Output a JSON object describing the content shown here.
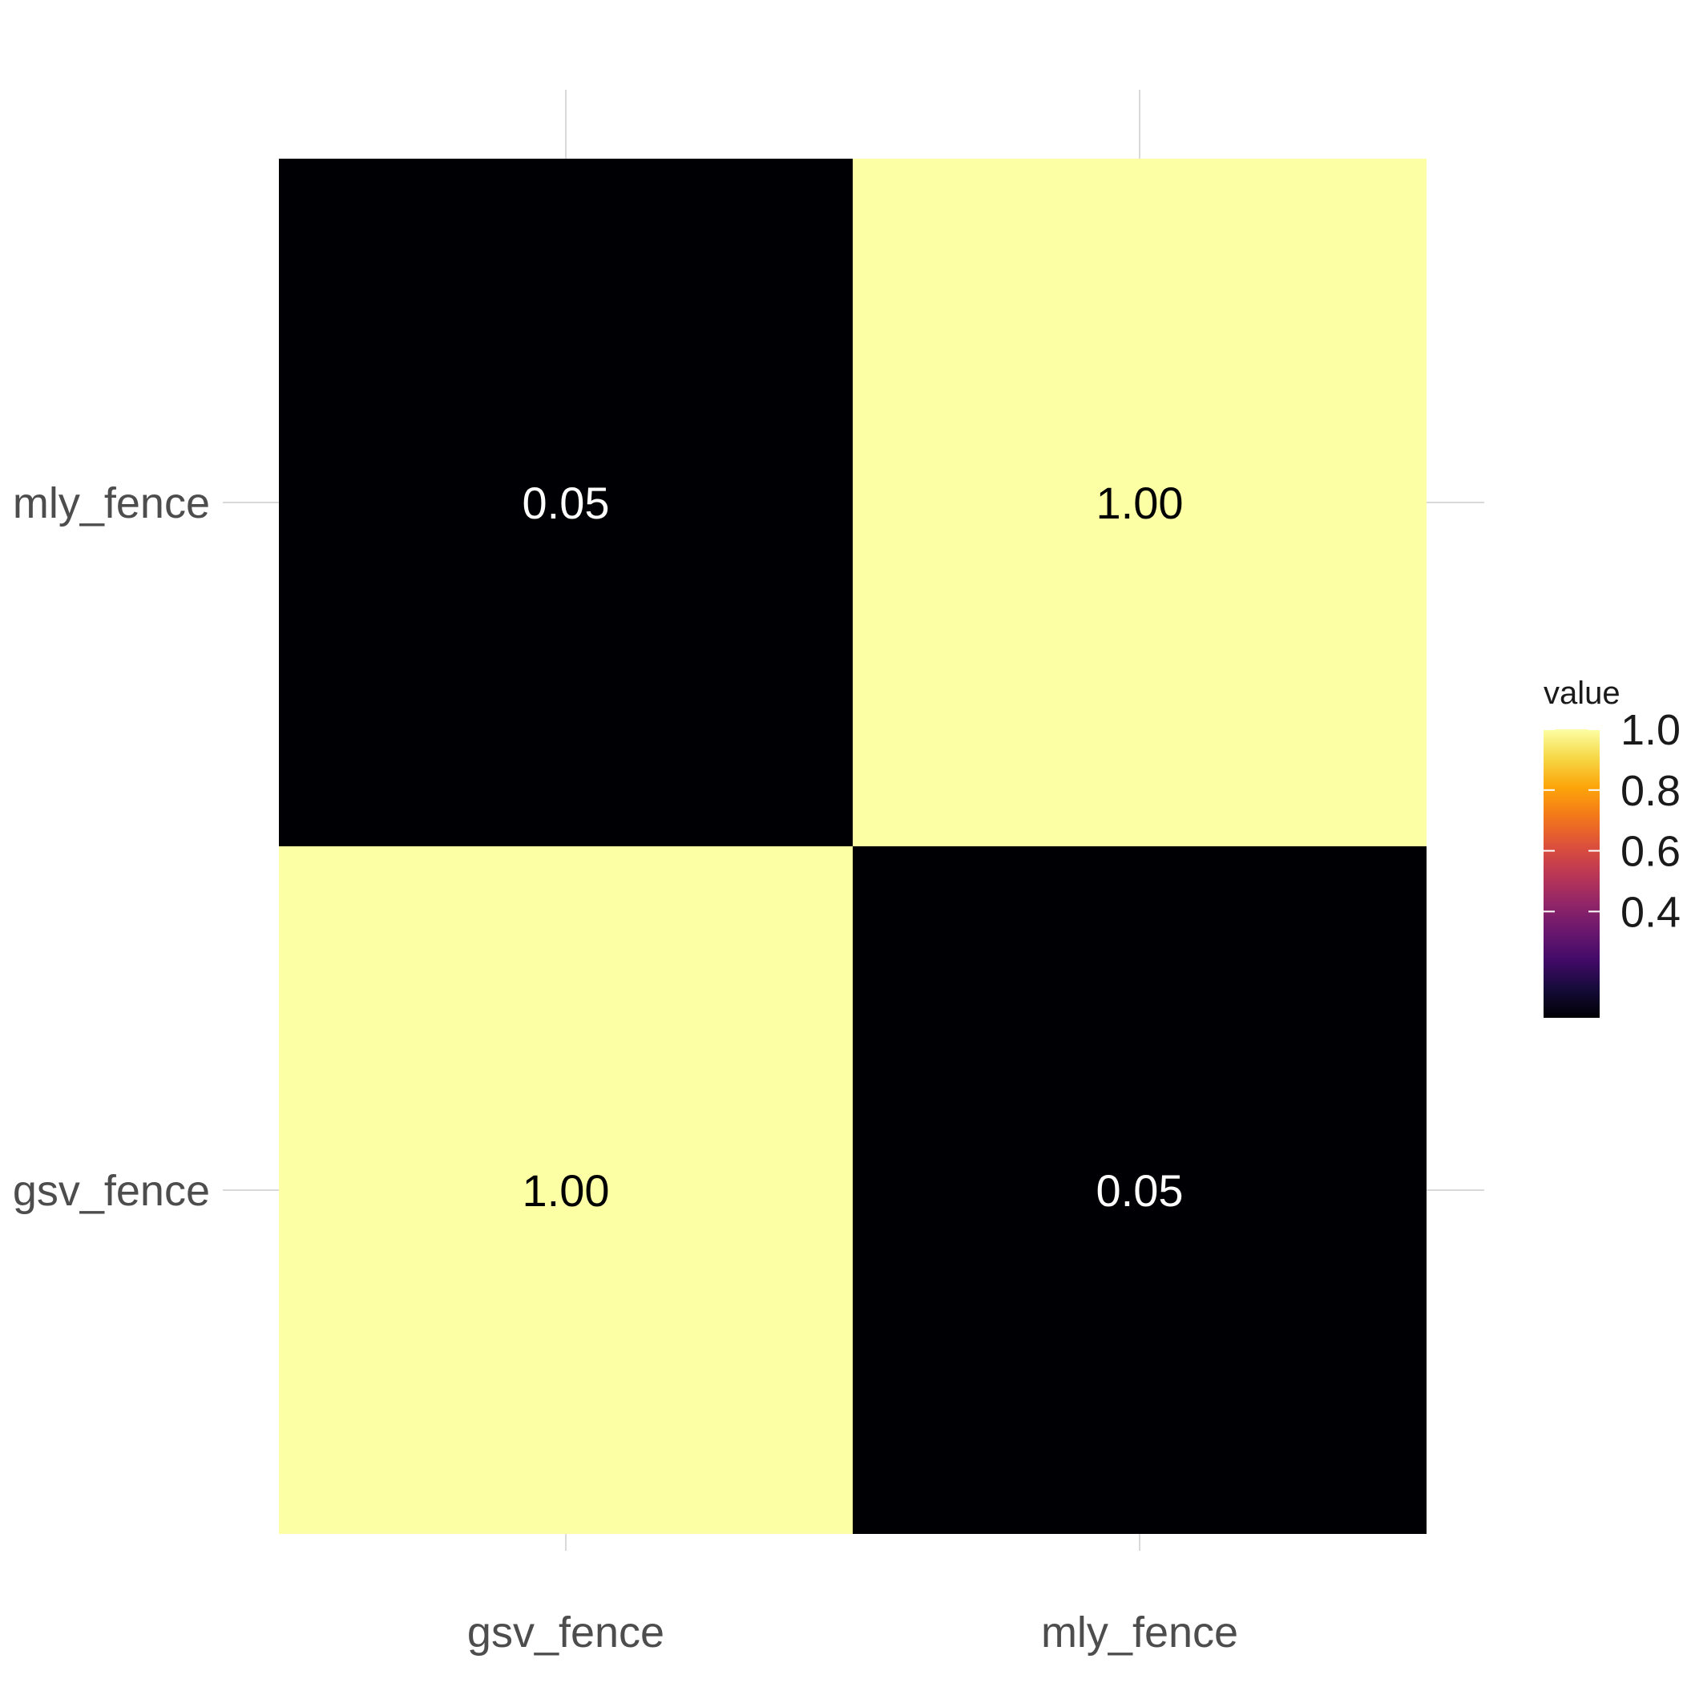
{
  "chart_data": {
    "type": "heatmap",
    "x_categories": [
      "gsv_fence",
      "mly_fence"
    ],
    "y_categories": [
      "gsv_fence",
      "mly_fence"
    ],
    "cells": [
      {
        "x": "gsv_fence",
        "y": "mly_fence",
        "value": 0.05,
        "label": "0.05"
      },
      {
        "x": "mly_fence",
        "y": "mly_fence",
        "value": 1.0,
        "label": "1.00"
      },
      {
        "x": "gsv_fence",
        "y": "gsv_fence",
        "value": 1.0,
        "label": "1.00"
      },
      {
        "x": "mly_fence",
        "y": "gsv_fence",
        "value": 0.05,
        "label": "0.05"
      }
    ],
    "legend": {
      "title": "value",
      "ticks": [
        {
          "value": 1.0,
          "label": "1.0"
        },
        {
          "value": 0.8,
          "label": "0.8"
        },
        {
          "value": 0.6,
          "label": "0.6"
        },
        {
          "value": 0.4,
          "label": "0.4"
        }
      ],
      "range": [
        0.05,
        1.0
      ],
      "colormap": "inferno",
      "color_low": "#000004",
      "color_high": "#fcffa4"
    },
    "grid": true,
    "legend_position": "right"
  }
}
